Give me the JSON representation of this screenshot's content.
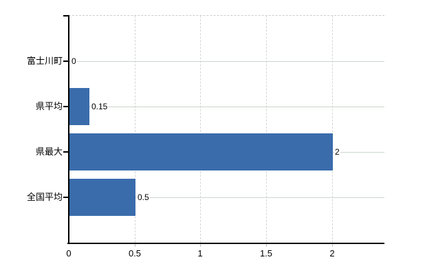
{
  "page": {
    "background": "#ffffff"
  },
  "chart_data": {
    "type": "bar",
    "orientation": "horizontal",
    "title": "",
    "categories": [
      "富士川町",
      "県平均",
      "県最大",
      "全国平均"
    ],
    "values": [
      0,
      0.15,
      2,
      0.5
    ],
    "value_labels": [
      "0",
      "0.15",
      "2",
      "0.5"
    ],
    "x_ticks": [
      0,
      0.5,
      1,
      1.5,
      2
    ],
    "x_tick_labels": [
      "0",
      "0.5",
      "1",
      "1.5",
      "2"
    ],
    "xlim": [
      0,
      2.4
    ],
    "grid": true,
    "legend": false,
    "colors": {
      "bar": "#3a6cac",
      "h_gridline": "#ccd6cc",
      "v_gridline": "#d4d4d4",
      "axis": "#000000",
      "top_border": "#cccccc",
      "tick": "#bfbfbf",
      "text": "#000000"
    }
  }
}
